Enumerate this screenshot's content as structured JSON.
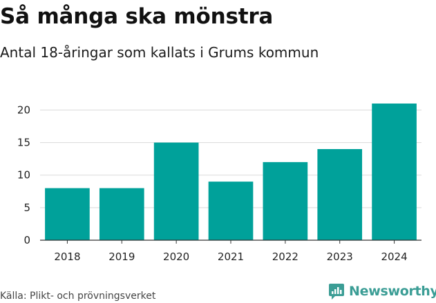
{
  "header": {
    "title": "Så många ska mönstra",
    "subtitle": "Antal 18-åringar som kallats i Grums kommun"
  },
  "footer": {
    "source": "Källa: Plikt- och prövningsverket",
    "brand_name": "Newsworthy",
    "brand_icon": "newsworthy-logo-icon"
  },
  "colors": {
    "bar": "#00a19a",
    "grid": "#d9d9d9",
    "axis": "#333333",
    "brand": "#3b9d95"
  },
  "chart_data": {
    "type": "bar",
    "title": "Så många ska mönstra",
    "subtitle": "Antal 18-åringar som kallats i Grums kommun",
    "xlabel": "",
    "ylabel": "",
    "categories": [
      "2018",
      "2019",
      "2020",
      "2021",
      "2022",
      "2023",
      "2024"
    ],
    "values": [
      8,
      8,
      15,
      9,
      12,
      14,
      21
    ],
    "ylim": [
      0,
      21
    ],
    "yticks": [
      0,
      5,
      10,
      15,
      20
    ],
    "grid": true,
    "legend": "none"
  }
}
